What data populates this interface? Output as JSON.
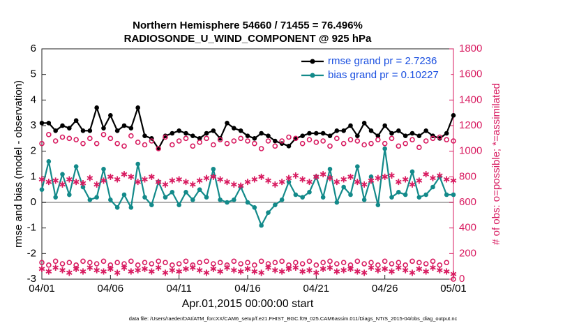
{
  "chart_data": {
    "type": "line",
    "title": "Northern Hemisphere 54660 / 71455 = 76.496%",
    "subtitle": "RADIOSONDE_U_WIND_COMPONENT @ 925 hPa",
    "xlabel": "Apr.01,2015 00:00:00 start",
    "ylabel": "rmse and bias (model - observation)",
    "y2label": "# of obs: o=possible; *=assimilated",
    "footnote": "data file: /Users/raeder/DAI/ATM_forcXX/CAM6_setup/f.e21.FHIST_BGC.f09_025.CAM6assim.011/Diags_NTrS_2015-04/obs_diag_output.nc",
    "legend": "upper right",
    "xlim": [
      0,
      30
    ],
    "xticks": [
      {
        "value": 0,
        "label": "04/01"
      },
      {
        "value": 5,
        "label": "04/06"
      },
      {
        "value": 10,
        "label": "04/11"
      },
      {
        "value": 15,
        "label": "04/16"
      },
      {
        "value": 20,
        "label": "04/21"
      },
      {
        "value": 25,
        "label": "04/26"
      },
      {
        "value": 30,
        "label": "05/01"
      }
    ],
    "ylim": [
      -3,
      6
    ],
    "yticks": [
      -3,
      -2,
      -1,
      0,
      1,
      2,
      3,
      4,
      5,
      6
    ],
    "y2lim": [
      0,
      1800
    ],
    "y2ticks": [
      0,
      200,
      400,
      600,
      800,
      1000,
      1200,
      1400,
      1600,
      1800
    ],
    "x": [
      0,
      0.5,
      1,
      1.5,
      2,
      2.5,
      3,
      3.5,
      4,
      4.5,
      5,
      5.5,
      6,
      6.5,
      7,
      7.5,
      8,
      8.5,
      9,
      9.5,
      10,
      10.5,
      11,
      11.5,
      12,
      12.5,
      13,
      13.5,
      14,
      14.5,
      15,
      15.5,
      16,
      16.5,
      17,
      17.5,
      18,
      18.5,
      19,
      19.5,
      20,
      20.5,
      21,
      21.5,
      22,
      22.5,
      23,
      23.5,
      24,
      24.5,
      25,
      25.5,
      26,
      26.5,
      27,
      27.5,
      28,
      28.5,
      29,
      29.5,
      30
    ],
    "series": [
      {
        "name": "rmse grand pr = 2.7236",
        "color": "#000000",
        "marker": "dot",
        "axis": "y",
        "line": true,
        "values": [
          3.1,
          3.1,
          2.8,
          3.0,
          2.9,
          3.2,
          2.8,
          2.8,
          3.7,
          2.9,
          3.4,
          2.8,
          3.0,
          2.9,
          3.7,
          2.6,
          2.5,
          2.1,
          2.6,
          2.7,
          2.8,
          2.7,
          2.6,
          2.5,
          2.7,
          2.8,
          2.5,
          3.1,
          2.9,
          2.8,
          2.6,
          2.5,
          2.7,
          2.6,
          2.4,
          2.3,
          2.2,
          2.5,
          2.6,
          2.7,
          2.7,
          2.7,
          2.6,
          2.8,
          2.8,
          3.0,
          2.6,
          3.1,
          2.8,
          2.6,
          3.0,
          2.7,
          2.8,
          2.6,
          2.7,
          2.6,
          2.8,
          2.6,
          2.5,
          2.7,
          3.4
        ]
      },
      {
        "name": "bias grand pr = 0.10227",
        "color": "#138a8a",
        "marker": "dot",
        "axis": "y",
        "line": true,
        "values": [
          0.5,
          1.6,
          0.2,
          1.1,
          0.3,
          1.4,
          0.6,
          0.1,
          0.2,
          1.3,
          0.1,
          -0.2,
          0.3,
          -0.2,
          1.5,
          0.2,
          -0.1,
          0.8,
          0.2,
          0.4,
          -0.1,
          0.4,
          0.1,
          0.5,
          0.2,
          1.3,
          0.1,
          0.0,
          0.1,
          0.6,
          0.0,
          -0.2,
          -0.9,
          -0.4,
          -0.1,
          0.1,
          0.8,
          0.3,
          0.2,
          0.4,
          1.0,
          0.2,
          1.3,
          0.0,
          0.6,
          0.3,
          1.4,
          0.1,
          1.0,
          -0.1,
          2.1,
          0.2,
          0.4,
          0.3,
          1.2,
          0.2,
          0.3,
          0.6,
          1.0,
          0.3,
          0.3
        ]
      },
      {
        "color": "#d81b60",
        "marker": "circle",
        "axis": "y2",
        "line": false,
        "values": [
          1060,
          1130,
          1080,
          1110,
          1100,
          1090,
          1060,
          1100,
          1060,
          1130,
          1100,
          1060,
          1040,
          1120,
          1070,
          1050,
          1080,
          1020,
          1110,
          1050,
          1080,
          1100,
          1040,
          1070,
          1100,
          1050,
          1090,
          1060,
          1080,
          1100,
          1080,
          1060,
          1020,
          1080,
          1040,
          1080,
          1110,
          1100,
          1060,
          1090,
          1070,
          1080,
          1040,
          1100,
          1060,
          1090,
          1080,
          1050,
          1060,
          1090,
          1060,
          1100,
          1040,
          1060,
          1090,
          1030,
          1080,
          1100,
          1110,
          1090,
          1080
        ]
      },
      {
        "color": "#d81b60",
        "marker": "asterisk",
        "axis": "y2",
        "line": false,
        "values": [
          780,
          760,
          770,
          740,
          780,
          760,
          750,
          790,
          740,
          770,
          800,
          780,
          820,
          800,
          760,
          780,
          800,
          760,
          740,
          770,
          780,
          760,
          740,
          770,
          790,
          800,
          780,
          760,
          740,
          730,
          760,
          780,
          800,
          770,
          740,
          760,
          790,
          810,
          780,
          760,
          800,
          820,
          790,
          760,
          780,
          800,
          760,
          740,
          770,
          790,
          800,
          810,
          760,
          780,
          740,
          770,
          820,
          790,
          810,
          780,
          770
        ]
      },
      {
        "color": "#d81b60",
        "marker": "circle",
        "axis": "y2",
        "line": false,
        "values": [
          130,
          110,
          140,
          120,
          130,
          110,
          140,
          130,
          120,
          140,
          110,
          130,
          120,
          140,
          110,
          130,
          120,
          140,
          130,
          110,
          120,
          140,
          110,
          130,
          140,
          120,
          130,
          110,
          140,
          120,
          130,
          110,
          140,
          120,
          130,
          140,
          110,
          130,
          120,
          140,
          110,
          130,
          140,
          120,
          130,
          110,
          140,
          120,
          130,
          110,
          140,
          120,
          130,
          110,
          140,
          130,
          120,
          140,
          110,
          130,
          0
        ]
      },
      {
        "color": "#d81b60",
        "marker": "asterisk",
        "axis": "y2",
        "line": false,
        "values": [
          80,
          60,
          90,
          70,
          50,
          80,
          60,
          90,
          70,
          60,
          80,
          50,
          90,
          60,
          70,
          80,
          60,
          90,
          50,
          70,
          60,
          80,
          90,
          70,
          50,
          80,
          60,
          90,
          70,
          60,
          80,
          60,
          50,
          90,
          70,
          60,
          80,
          90,
          60,
          70,
          50,
          80,
          90,
          60,
          70,
          80,
          60,
          50,
          90,
          70,
          80,
          60,
          90,
          70,
          50,
          80,
          60,
          90,
          70,
          60,
          40
        ]
      }
    ]
  }
}
